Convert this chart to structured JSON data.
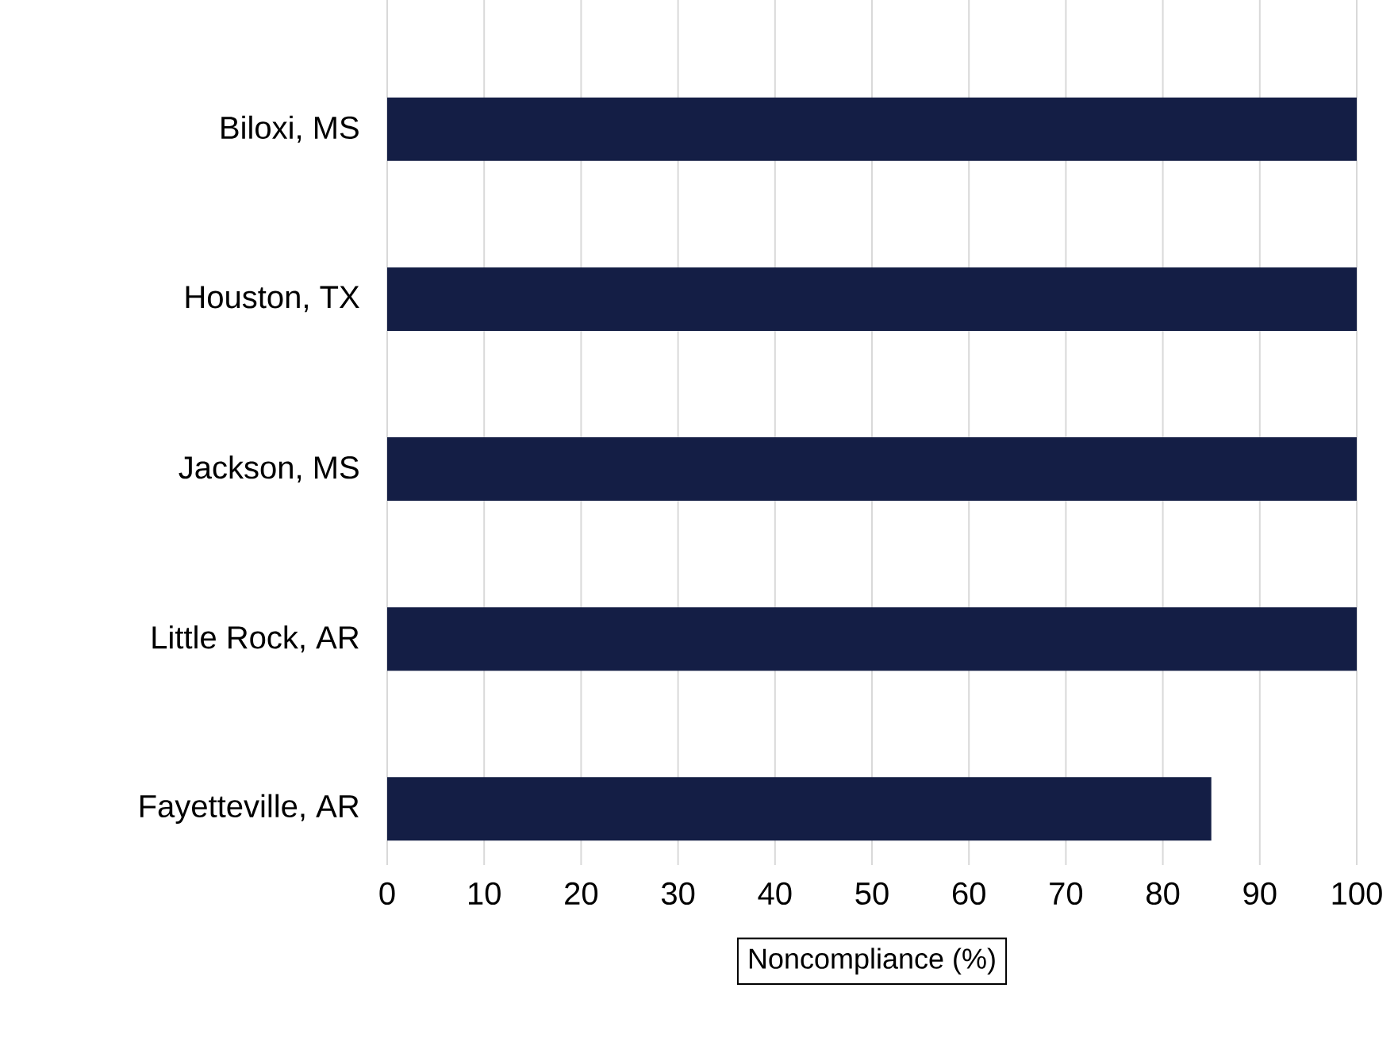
{
  "chart_data": {
    "type": "bar",
    "orientation": "horizontal",
    "xlabel": "Noncompliance (%)",
    "categories": [
      "Biloxi, MS",
      "Houston, TX",
      "Jackson, MS",
      "Little Rock, AR",
      "Fayetteville, AR"
    ],
    "values": [
      100,
      100,
      100,
      100,
      85
    ],
    "color": "#141e45",
    "xlim": [
      0,
      100
    ],
    "xticks": [
      0,
      10,
      20,
      30,
      40,
      50,
      60,
      70,
      80,
      90,
      100
    ],
    "grid": "x"
  }
}
